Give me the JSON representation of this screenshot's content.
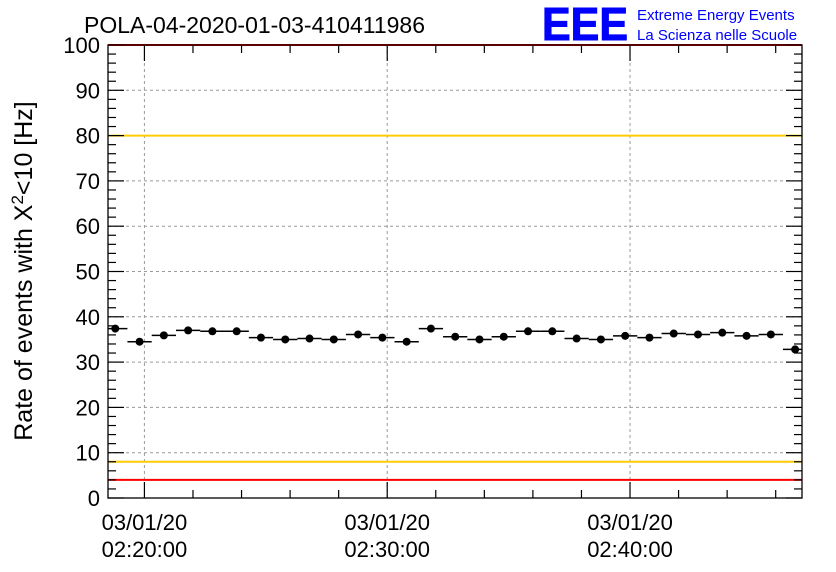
{
  "logo": {
    "letters": "EEE",
    "line1": "Extreme Energy Events",
    "line2": "La Scienza nelle Scuole",
    "color": "#0000ff"
  },
  "chart_data": {
    "type": "scatter",
    "title": "POLA-04-2020-01-03-410411986",
    "xlabel": "",
    "ylabel": "Rate of events with X²<10 [Hz]",
    "ylabel_parts": {
      "prefix": "Rate of events with X",
      "sup": "2",
      "suffix": "<10 [Hz]"
    },
    "xlim": [
      "02:18:30",
      "02:47:05"
    ],
    "ylim": [
      0,
      100
    ],
    "y_ticks": [
      0,
      10,
      20,
      30,
      40,
      50,
      60,
      70,
      80,
      90,
      100
    ],
    "x_ticks": [
      {
        "time": "02:20:00",
        "date": "03/01/20"
      },
      {
        "time": "02:30:00",
        "date": "03/01/20"
      },
      {
        "time": "02:40:00",
        "date": "03/01/20"
      }
    ],
    "grid": true,
    "reference_lines": [
      {
        "y": 100,
        "color": "#ff0000"
      },
      {
        "y": 80,
        "color": "#ffcc00"
      },
      {
        "y": 8,
        "color": "#ffcc00"
      },
      {
        "y": 4,
        "color": "#ff0000"
      }
    ],
    "series": [
      {
        "color": "#000000",
        "x": [
          "02:18:48",
          "02:19:48",
          "02:20:48",
          "02:21:48",
          "02:22:48",
          "02:23:48",
          "02:24:48",
          "02:25:48",
          "02:26:48",
          "02:27:48",
          "02:28:48",
          "02:29:48",
          "02:30:48",
          "02:31:48",
          "02:32:48",
          "02:33:48",
          "02:34:48",
          "02:35:48",
          "02:36:48",
          "02:37:48",
          "02:38:48",
          "02:39:48",
          "02:40:48",
          "02:41:48",
          "02:42:48",
          "02:43:48",
          "02:44:48",
          "02:45:48",
          "02:46:48"
        ],
        "y": [
          37.4,
          34.5,
          35.9,
          37.0,
          36.8,
          36.8,
          35.4,
          35.0,
          35.2,
          35.0,
          36.1,
          35.4,
          34.5,
          37.4,
          35.6,
          35.0,
          35.6,
          36.8,
          36.8,
          35.2,
          35.0,
          35.8,
          35.4,
          36.3,
          36.1,
          36.5,
          35.8,
          36.1,
          32.8
        ],
        "x_halfwidth_s": 30
      }
    ]
  }
}
